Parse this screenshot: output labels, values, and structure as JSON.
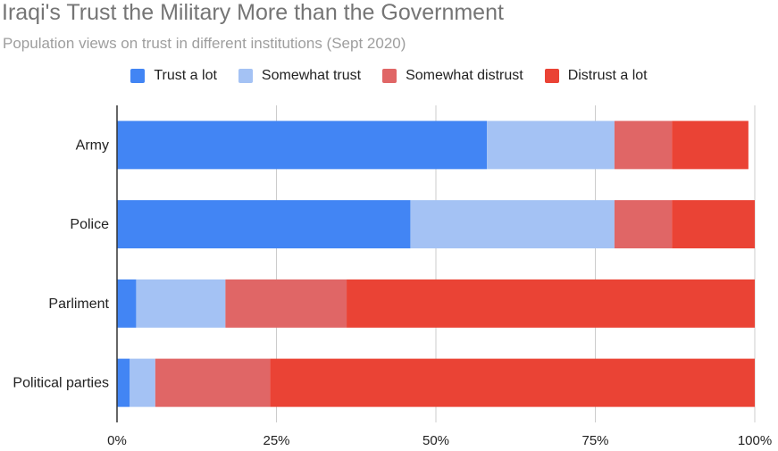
{
  "title": "Iraqi's Trust the Military More than the Government",
  "subtitle": "Population views on trust in different institutions (Sept 2020)",
  "colors": [
    "#4285f4",
    "#a4c2f4",
    "#e06666",
    "#ea4335"
  ],
  "chart_data": {
    "type": "bar",
    "orientation": "horizontal",
    "stacked": true,
    "categories": [
      "Army",
      "Police",
      "Parliment",
      "Political parties"
    ],
    "series": [
      {
        "name": "Trust a lot",
        "values": [
          58,
          46,
          3,
          2
        ]
      },
      {
        "name": "Somewhat trust",
        "values": [
          20,
          32,
          14,
          4
        ]
      },
      {
        "name": "Somewhat distrust",
        "values": [
          9,
          9,
          19,
          18
        ]
      },
      {
        "name": "Distrust a lot",
        "values": [
          12,
          13,
          64,
          76
        ]
      }
    ],
    "xlim": [
      0,
      100
    ],
    "x_ticks": [
      "0%",
      "25%",
      "50%",
      "75%",
      "100%"
    ],
    "grid": true,
    "legend_position": "top"
  }
}
